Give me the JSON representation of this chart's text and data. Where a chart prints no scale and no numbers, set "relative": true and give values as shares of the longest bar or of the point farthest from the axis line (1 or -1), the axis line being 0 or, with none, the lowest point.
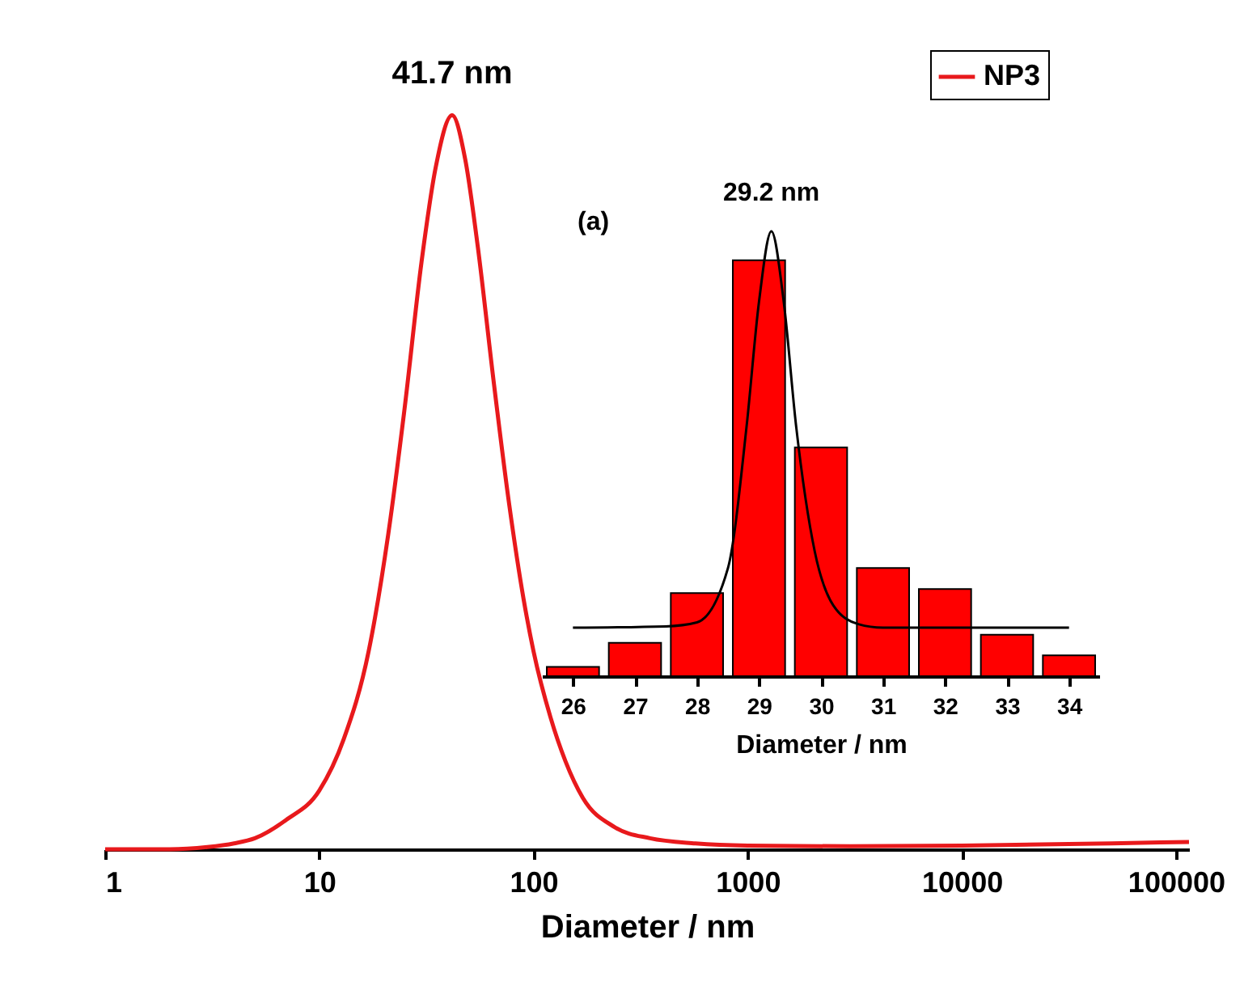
{
  "chart_data": [
    {
      "type": "line",
      "xlabel": "Diameter / nm",
      "log": "x",
      "relative": true,
      "legend": "top right",
      "xlim": [
        1,
        115000
      ],
      "xticks": [
        1,
        10,
        100,
        1000,
        10000,
        100000
      ],
      "x": [
        1,
        2,
        3,
        4,
        5,
        7,
        10,
        13,
        17,
        21,
        25,
        30,
        35,
        41.7,
        48,
        55,
        65,
        77,
        90,
        100,
        120,
        141,
        170,
        240,
        350,
        570,
        1000,
        3000,
        10000,
        50000,
        115000
      ],
      "series": [
        {
          "name": "NP3",
          "color": "#e8191c",
          "values": [
            0,
            0,
            0.003,
            0.008,
            0.015,
            0.04,
            0.08,
            0.15,
            0.27,
            0.43,
            0.6,
            0.8,
            0.93,
            1,
            0.94,
            0.82,
            0.64,
            0.47,
            0.34,
            0.27,
            0.18,
            0.12,
            0.07,
            0.03,
            0.015,
            0.008,
            0.005,
            0.004,
            0.005,
            0.008,
            0.01
          ]
        }
      ],
      "annotations": [
        {
          "text": "41.7 nm",
          "x": 41.7,
          "y": 1
        }
      ]
    },
    {
      "type": "histogram",
      "xlabel": "Diameter / nm",
      "relative": true,
      "xlim": [
        25.5,
        34.5
      ],
      "xticks": [
        26,
        27,
        28,
        29,
        30,
        31,
        32,
        33,
        34
      ],
      "bins": [
        25.5,
        26.5,
        27.5,
        28.5,
        29.5,
        30.5,
        31.5,
        32.5,
        33.5,
        34.5
      ],
      "series": [
        {
          "type": "histogram",
          "color": "#ff0000",
          "values": [
            0.021,
            0.075,
            0.187,
            0.935,
            0.514,
            0.243,
            0.196,
            0.093,
            0.047
          ]
        },
        {
          "type": "line",
          "color": "#000000",
          "x": [
            26,
            27.5,
            28,
            28.5,
            28.8,
            29,
            29.2,
            29.4,
            29.6,
            29.9,
            30.2,
            30.6,
            31,
            34
          ],
          "values": [
            0.109,
            0.112,
            0.121,
            0.243,
            0.561,
            0.841,
            1,
            0.841,
            0.561,
            0.28,
            0.159,
            0.117,
            0.109,
            0.109
          ]
        }
      ],
      "annotations": [
        "(a)",
        {
          "text": "29.2 nm",
          "x": 29.2,
          "y": 1
        }
      ]
    }
  ]
}
